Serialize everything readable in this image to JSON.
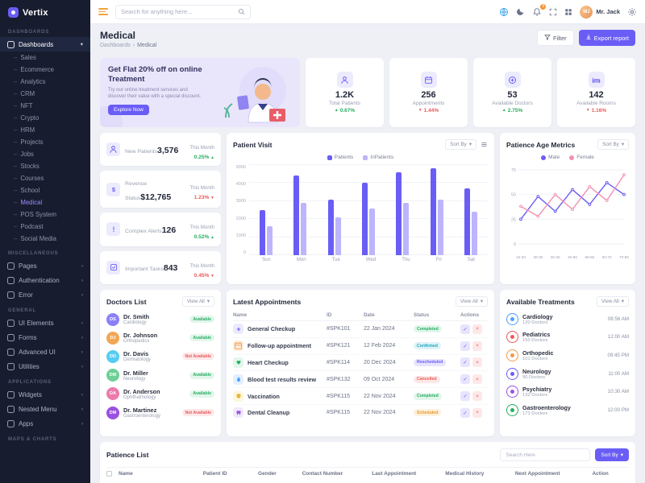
{
  "app": {
    "name": "Vertix"
  },
  "header": {
    "search_placeholder": "Search for anything here...",
    "notification_count": "5",
    "user_name": "Mr. Jack"
  },
  "sidebar": {
    "sections": [
      {
        "label": "DASHBOARDS",
        "items": [
          {
            "label": "Dashboards",
            "icon": "dashboards-icon",
            "active": true,
            "children": [
              "Sales",
              "Ecommerce",
              "Analytics",
              "CRM",
              "NFT",
              "Crypto",
              "HRM",
              "Projects",
              "Jobs",
              "Stocks",
              "Courses",
              "School",
              "Medical",
              "POS System",
              "Podcast",
              "Social Media"
            ],
            "active_child": "Medical"
          }
        ]
      },
      {
        "label": "MISCELLANEOUS",
        "items": [
          {
            "label": "Pages",
            "icon": "pages-icon"
          },
          {
            "label": "Authentication",
            "icon": "authentication-icon"
          },
          {
            "label": "Error",
            "icon": "error-icon"
          }
        ]
      },
      {
        "label": "GENERAL",
        "items": [
          {
            "label": "UI Elements",
            "icon": "ui-elements-icon"
          },
          {
            "label": "Forms",
            "icon": "forms-icon"
          },
          {
            "label": "Advanced UI",
            "icon": "advanced-ui-icon"
          },
          {
            "label": "Utilities",
            "icon": "utilities-icon"
          }
        ]
      },
      {
        "label": "APPLICATIONS",
        "items": [
          {
            "label": "Widgets",
            "icon": "widgets-icon"
          },
          {
            "label": "Nested Menu",
            "icon": "nested-menu-icon"
          },
          {
            "label": "Apps",
            "icon": "apps-icon"
          }
        ]
      },
      {
        "label": "MAPS & CHARTS",
        "items": []
      }
    ]
  },
  "page": {
    "title": "Medical",
    "breadcrumb_root": "Dashboards",
    "breadcrumb_current": "Medical",
    "filter_label": "Filter",
    "export_label": "Export report"
  },
  "banner": {
    "title": "Get Flat 20% off on online Treatment",
    "text": "Try our online treatment services and discover their value with a special discount.",
    "button": "Explore Now"
  },
  "stats": [
    {
      "icon": "total-patients-icon",
      "value": "1.2K",
      "label": "Total Patients",
      "percent": "0.67%",
      "direction": "up",
      "trend_color": "#27ae60"
    },
    {
      "icon": "appointments-icon",
      "value": "256",
      "label": "Appointments",
      "percent": "1.44%",
      "direction": "down",
      "trend_color": "#ea5a5a"
    },
    {
      "icon": "available-doctors-icon",
      "value": "53",
      "label": "Available Doctors",
      "percent": "2.75%",
      "direction": "up",
      "trend_color": "#27ae60"
    },
    {
      "icon": "available-rooms-icon",
      "value": "142",
      "label": "Available Rooms",
      "percent": "1.16%",
      "direction": "down",
      "trend_color": "#ea5a5a"
    }
  ],
  "mini_stats": [
    {
      "icon": "new-patients-icon",
      "label": "New Patients",
      "value": "3,576",
      "period": "This Month",
      "percent": "0.25%",
      "direction": "up",
      "trend_color": "#27ae60"
    },
    {
      "icon": "revenue-status-icon",
      "label": "Revenue Status",
      "value": "$12,765",
      "period": "This Month",
      "percent": "1.23%",
      "direction": "down",
      "trend_color": "#ea5a5a"
    },
    {
      "icon": "complex-alerts-icon",
      "label": "Complex Alerts",
      "value": "126",
      "period": "This Month",
      "percent": "0.52%",
      "direction": "up",
      "trend_color": "#27ae60"
    },
    {
      "icon": "important-tasks-icon",
      "label": "Important Tasks",
      "value": "843",
      "period": "This Month",
      "percent": "0.45%",
      "direction": "down",
      "trend_color": "#ea5a5a"
    }
  ],
  "patient_visit": {
    "title": "Patient Visit",
    "sort_label": "Sort By"
  },
  "age_metrics": {
    "title": "Patience Age Metrics",
    "sort_label": "Sort By"
  },
  "chart_data": [
    {
      "type": "bar",
      "title": "Patient Visit",
      "categories": [
        "Sun",
        "Mon",
        "Tue",
        "Wed",
        "Thu",
        "Fri",
        "Sat"
      ],
      "series": [
        {
          "name": "Patients",
          "color": "#6a5df6",
          "values": [
            2500,
            4400,
            3100,
            4000,
            4600,
            4800,
            3700
          ]
        },
        {
          "name": "InPatients",
          "color": "#bdb5fb",
          "values": [
            1600,
            2900,
            2100,
            2600,
            2900,
            3100,
            2400
          ]
        }
      ],
      "ylim": [
        0,
        5000
      ],
      "yticks": [
        0,
        1000,
        2000,
        3000,
        4000,
        5000
      ],
      "grid": true,
      "legend_position": "top"
    },
    {
      "type": "line",
      "title": "Patience Age Metrics",
      "x": [
        "10-20",
        "20-30",
        "30-40",
        "40-50",
        "50-60",
        "60-70",
        "70-80"
      ],
      "series": [
        {
          "name": "Male",
          "color": "#6a5df6",
          "values": [
            25,
            48,
            33,
            55,
            40,
            62,
            50
          ]
        },
        {
          "name": "Female",
          "color": "#f291b1",
          "values": [
            38,
            28,
            50,
            35,
            58,
            44,
            70
          ]
        }
      ],
      "ylim": [
        0,
        75
      ],
      "yticks": [
        0,
        25,
        50,
        75
      ],
      "grid": true,
      "legend_position": "top"
    }
  ],
  "doctors": {
    "title": "Doctors List",
    "view_all": "View All",
    "rows": [
      {
        "name": "Dr. Smith",
        "specialty": "Cardiology",
        "status": "Available",
        "status_type": "available",
        "avatar_color": "#8b80f9"
      },
      {
        "name": "Dr. Johnson",
        "specialty": "Orthopedics",
        "status": "Available",
        "status_type": "available",
        "avatar_color": "#f2a654"
      },
      {
        "name": "Dr. Davis",
        "specialty": "Dermatology",
        "status": "Not Available",
        "status_type": "unavailable",
        "avatar_color": "#56ccf2"
      },
      {
        "name": "Dr. Miller",
        "specialty": "Neurology",
        "status": "Available",
        "status_type": "available",
        "avatar_color": "#6fcf97"
      },
      {
        "name": "Dr. Anderson",
        "specialty": "Ophthalmology",
        "status": "Available",
        "status_type": "available",
        "avatar_color": "#eb7bab"
      },
      {
        "name": "Dr. Martinez",
        "specialty": "Gastroenterology",
        "status": "Not Available",
        "status_type": "unavailable",
        "avatar_color": "#9b51e0"
      }
    ]
  },
  "appointments": {
    "title": "Latest Appointments",
    "view_all": "View All",
    "columns": [
      "Name",
      "ID",
      "Date",
      "Status",
      "Actions"
    ],
    "rows": [
      {
        "name": "General Checkup",
        "id": "#SPK101",
        "date": "22 Jan 2024",
        "status": "Completed",
        "status_bg": "#e2f6ec",
        "status_color": "#27ae60",
        "icon": "checkup-icon",
        "glyph": "plus",
        "icon_bg": "#ecebfd",
        "icon_color": "#6a5df6"
      },
      {
        "name": "Follow-up appointment",
        "id": "#SPK121",
        "date": "12 Feb 2024",
        "status": "Confirmed",
        "status_bg": "#ddf3f8",
        "status_color": "#26a3bd",
        "icon": "followup-icon",
        "glyph": "calendar",
        "icon_bg": "#fdeede",
        "icon_color": "#f2994a"
      },
      {
        "name": "Heart Checkup",
        "id": "#SPK114",
        "date": "20 Dec 2024",
        "status": "Rescheduled",
        "status_bg": "#e7e4fd",
        "status_color": "#6a5df6",
        "icon": "heart-checkup-icon",
        "glyph": "heart",
        "icon_bg": "#e2f6ec",
        "icon_color": "#27ae60"
      },
      {
        "name": "Blood test results review",
        "id": "#SPK132",
        "date": "09 Oct 2024",
        "status": "Cancelled",
        "status_bg": "#fde8e8",
        "status_color": "#ea5a5a",
        "icon": "blood-test-icon",
        "glyph": "drop",
        "icon_bg": "#e3f0fe",
        "icon_color": "#4c9ffe"
      },
      {
        "name": "Vaccination",
        "id": "#SPK115",
        "date": "22 Nov 2024",
        "status": "Completed",
        "status_bg": "#e2f6ec",
        "status_color": "#27ae60",
        "icon": "vaccination-icon",
        "glyph": "shield",
        "icon_bg": "#fdf6dd",
        "icon_color": "#e2b93b"
      },
      {
        "name": "Dental Cleanup",
        "id": "#SPK115",
        "date": "22 Nov 2024",
        "status": "Scheduled",
        "status_bg": "#fdf0dd",
        "status_color": "#e59c2e",
        "icon": "dental-icon",
        "glyph": "tooth",
        "icon_bg": "#f2e9fd",
        "icon_color": "#9b51e0"
      }
    ]
  },
  "treatments": {
    "title": "Available Treatments",
    "view_all": "View All",
    "rows": [
      {
        "name": "Cardiology",
        "doctors": "120 Doctors",
        "time": "08:56 AM",
        "color": "#4c9ffe"
      },
      {
        "name": "Pediatrics",
        "doctors": "150 Doctors",
        "time": "12:00 AM",
        "color": "#ea5a5a"
      },
      {
        "name": "Orthopedic",
        "doctors": "101 Doctors",
        "time": "09:45 PM",
        "color": "#f2994a"
      },
      {
        "name": "Neurology",
        "doctors": "90 Doctors",
        "time": "11:00 AM",
        "color": "#6a5df6"
      },
      {
        "name": "Psychiatry",
        "doctors": "132 Doctors",
        "time": "10:30 AM",
        "color": "#9b51e0"
      },
      {
        "name": "Gastroenterology",
        "doctors": "173 Doctors",
        "time": "12:00 PM",
        "color": "#27ae60"
      }
    ]
  },
  "patience_list": {
    "title": "Patience List",
    "search_placeholder": "Search Here",
    "sort_label": "Sort By",
    "columns": [
      "Name",
      "Patient ID",
      "Gender",
      "Contact Number",
      "Last Appointment",
      "Medical History",
      "Next Appointment",
      "Action"
    ]
  }
}
